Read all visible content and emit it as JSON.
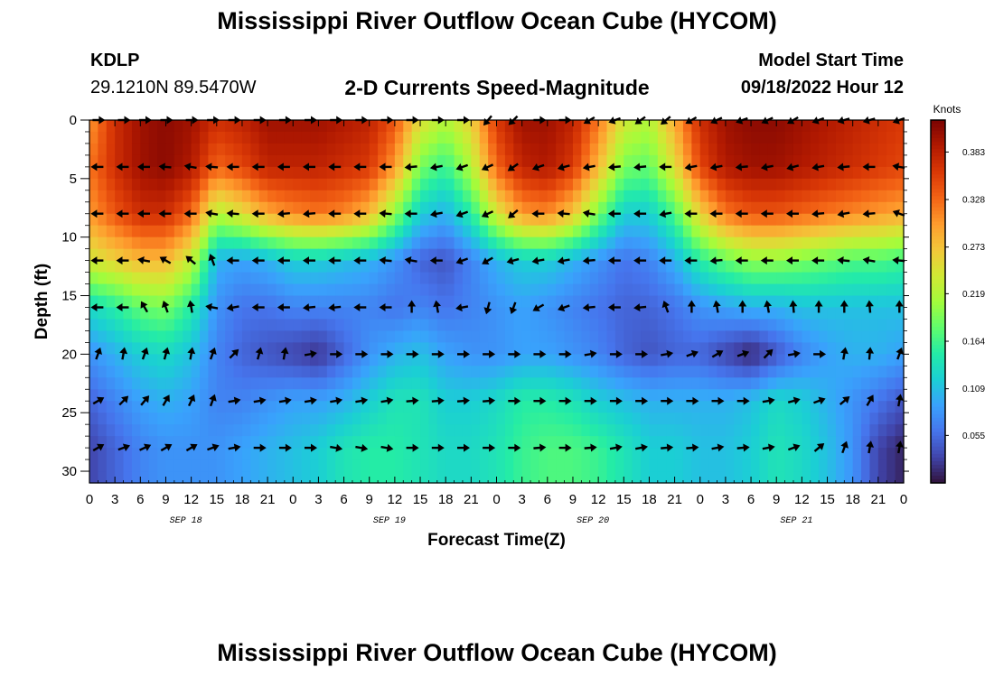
{
  "header": {
    "title": "Mississippi River Outflow Ocean Cube (HYCOM)",
    "station_id": "KDLP",
    "station_coords": "29.1210N  89.5470W",
    "subtitle": "2-D Currents Speed-Magnitude",
    "model_start_label": "Model Start Time",
    "model_start_value": "09/18/2022 Hour 12"
  },
  "footer": {
    "title": "Mississippi River Outflow Ocean Cube (HYCOM)"
  },
  "chart_data": {
    "type": "heatmap",
    "xlabel": "Forecast Time(Z)",
    "ylabel": "Depth (ft)",
    "x_tick_labels": [
      "0",
      "3",
      "6",
      "9",
      "12",
      "15",
      "18",
      "21",
      "0",
      "3",
      "6",
      "9",
      "12",
      "15",
      "18",
      "21",
      "0",
      "3",
      "6",
      "9",
      "12",
      "15",
      "18",
      "21",
      "0",
      "3",
      "6",
      "9",
      "12",
      "15",
      "18",
      "21",
      "0"
    ],
    "date_labels": [
      "SEP 18",
      "SEP 19",
      "SEP 20",
      "SEP 21"
    ],
    "y_ticks": [
      0,
      5,
      10,
      15,
      20,
      25,
      30
    ],
    "ylim": [
      0,
      31
    ],
    "x_range_hours": [
      0,
      96
    ],
    "colorbar": {
      "unit": "Knots",
      "min": 0.0,
      "max": 0.42,
      "ticks": [
        0.055,
        0.109,
        0.164,
        0.219,
        0.273,
        0.328,
        0.383
      ],
      "tick_labels": [
        "0.055",
        "0.109",
        "0.164",
        "0.219",
        "0.273",
        "0.328",
        "0.383"
      ],
      "colors": [
        "#30123b",
        "#4145ab",
        "#4675ed",
        "#39a2fc",
        "#1bcfd4",
        "#24eca6",
        "#61fc6c",
        "#a4fc3b",
        "#d1e834",
        "#f3c63a",
        "#fe9b2d",
        "#f36315",
        "#d93806",
        "#b11901",
        "#7a0402"
      ]
    },
    "depths": [
      0,
      4,
      8,
      12,
      16,
      20,
      24,
      28
    ],
    "times": [
      0,
      3,
      6,
      9,
      12,
      15,
      18,
      21,
      24,
      27,
      30,
      33,
      36,
      39,
      42,
      45,
      48,
      51,
      54,
      57,
      60,
      63,
      66,
      69,
      72,
      75,
      78,
      81,
      84,
      87,
      90,
      93,
      96
    ],
    "speed": [
      [
        0.3,
        0.37,
        0.4,
        0.41,
        0.4,
        0.37,
        0.38,
        0.4,
        0.4,
        0.4,
        0.39,
        0.38,
        0.34,
        0.25,
        0.22,
        0.26,
        0.36,
        0.4,
        0.4,
        0.38,
        0.32,
        0.24,
        0.22,
        0.29,
        0.37,
        0.4,
        0.41,
        0.41,
        0.4,
        0.39,
        0.38,
        0.37,
        0.36
      ],
      [
        0.32,
        0.37,
        0.4,
        0.41,
        0.39,
        0.33,
        0.35,
        0.38,
        0.38,
        0.38,
        0.37,
        0.36,
        0.3,
        0.19,
        0.16,
        0.22,
        0.33,
        0.38,
        0.39,
        0.36,
        0.28,
        0.19,
        0.18,
        0.25,
        0.35,
        0.39,
        0.4,
        0.4,
        0.39,
        0.38,
        0.37,
        0.36,
        0.35
      ],
      [
        0.3,
        0.34,
        0.37,
        0.37,
        0.33,
        0.22,
        0.25,
        0.29,
        0.31,
        0.32,
        0.31,
        0.28,
        0.2,
        0.12,
        0.1,
        0.15,
        0.24,
        0.3,
        0.31,
        0.27,
        0.19,
        0.12,
        0.12,
        0.17,
        0.26,
        0.32,
        0.34,
        0.34,
        0.33,
        0.32,
        0.31,
        0.3,
        0.29
      ],
      [
        0.24,
        0.26,
        0.28,
        0.28,
        0.23,
        0.1,
        0.09,
        0.1,
        0.12,
        0.12,
        0.11,
        0.1,
        0.08,
        0.05,
        0.04,
        0.07,
        0.1,
        0.12,
        0.12,
        0.1,
        0.08,
        0.06,
        0.07,
        0.1,
        0.15,
        0.18,
        0.2,
        0.2,
        0.19,
        0.18,
        0.17,
        0.17,
        0.16
      ],
      [
        0.13,
        0.15,
        0.18,
        0.19,
        0.15,
        0.08,
        0.06,
        0.06,
        0.07,
        0.07,
        0.07,
        0.07,
        0.06,
        0.07,
        0.06,
        0.07,
        0.08,
        0.09,
        0.08,
        0.07,
        0.06,
        0.05,
        0.05,
        0.06,
        0.08,
        0.09,
        0.1,
        0.1,
        0.11,
        0.11,
        0.11,
        0.11,
        0.11
      ],
      [
        0.08,
        0.1,
        0.12,
        0.13,
        0.11,
        0.07,
        0.05,
        0.04,
        0.03,
        0.02,
        0.05,
        0.08,
        0.1,
        0.11,
        0.09,
        0.08,
        0.08,
        0.09,
        0.09,
        0.08,
        0.07,
        0.05,
        0.04,
        0.05,
        0.05,
        0.03,
        0.01,
        0.04,
        0.07,
        0.09,
        0.1,
        0.1,
        0.09
      ],
      [
        0.05,
        0.07,
        0.09,
        0.1,
        0.09,
        0.07,
        0.07,
        0.08,
        0.09,
        0.09,
        0.1,
        0.12,
        0.14,
        0.14,
        0.12,
        0.12,
        0.13,
        0.15,
        0.15,
        0.14,
        0.12,
        0.11,
        0.1,
        0.1,
        0.1,
        0.1,
        0.11,
        0.13,
        0.12,
        0.1,
        0.08,
        0.06,
        0.04
      ],
      [
        0.03,
        0.05,
        0.07,
        0.08,
        0.08,
        0.08,
        0.09,
        0.1,
        0.11,
        0.12,
        0.14,
        0.15,
        0.15,
        0.14,
        0.13,
        0.13,
        0.14,
        0.16,
        0.17,
        0.17,
        0.16,
        0.14,
        0.12,
        0.12,
        0.11,
        0.11,
        0.12,
        0.14,
        0.13,
        0.11,
        0.08,
        0.03,
        0.01
      ]
    ],
    "arrow_depths": [
      0,
      4,
      8,
      12,
      16,
      20,
      24,
      28
    ],
    "arrow_times": [
      1,
      4,
      6.5,
      9,
      12,
      14.5,
      17,
      20,
      23,
      26,
      29,
      32,
      35,
      38,
      41,
      44,
      47,
      50,
      53,
      56,
      59,
      62,
      65,
      68,
      71,
      74,
      77,
      80,
      83,
      86,
      89,
      92,
      95.5
    ],
    "arrow_direction_deg": [
      [
        0,
        0,
        0,
        0,
        0,
        0,
        0,
        0,
        0,
        0,
        0,
        0,
        0,
        0,
        0,
        0,
        230,
        225,
        0,
        0,
        210,
        200,
        215,
        220,
        210,
        205,
        200,
        205,
        210,
        200,
        195,
        195,
        200
      ],
      [
        180,
        180,
        180,
        175,
        170,
        175,
        180,
        180,
        180,
        180,
        180,
        180,
        180,
        185,
        190,
        200,
        205,
        215,
        200,
        195,
        190,
        185,
        185,
        180,
        190,
        190,
        185,
        190,
        195,
        190,
        185,
        180,
        170
      ],
      [
        180,
        180,
        180,
        180,
        180,
        170,
        175,
        180,
        185,
        185,
        180,
        180,
        175,
        180,
        190,
        200,
        205,
        220,
        180,
        175,
        170,
        180,
        180,
        190,
        180,
        180,
        180,
        180,
        180,
        185,
        190,
        185,
        160
      ],
      [
        180,
        180,
        170,
        150,
        140,
        110,
        180,
        180,
        180,
        180,
        180,
        180,
        175,
        170,
        180,
        200,
        210,
        195,
        190,
        190,
        185,
        180,
        180,
        180,
        180,
        185,
        180,
        180,
        180,
        180,
        175,
        170,
        175
      ],
      [
        180,
        180,
        120,
        110,
        100,
        170,
        190,
        180,
        180,
        185,
        185,
        180,
        180,
        90,
        100,
        190,
        255,
        250,
        210,
        200,
        185,
        180,
        185,
        110,
        90,
        100,
        90,
        100,
        95,
        90,
        90,
        95,
        90
      ],
      [
        70,
        80,
        70,
        75,
        80,
        70,
        45,
        75,
        80,
        10,
        0,
        0,
        0,
        0,
        0,
        0,
        0,
        0,
        0,
        0,
        10,
        0,
        0,
        10,
        20,
        30,
        20,
        45,
        10,
        0,
        80,
        85,
        70
      ],
      [
        30,
        45,
        50,
        60,
        65,
        70,
        10,
        10,
        10,
        10,
        10,
        10,
        10,
        5,
        5,
        5,
        5,
        0,
        0,
        0,
        0,
        0,
        0,
        0,
        0,
        0,
        0,
        10,
        15,
        20,
        40,
        60,
        80
      ],
      [
        30,
        20,
        25,
        30,
        30,
        20,
        10,
        0,
        0,
        0,
        -10,
        -10,
        -10,
        0,
        0,
        0,
        0,
        0,
        5,
        0,
        5,
        10,
        10,
        5,
        5,
        10,
        5,
        10,
        20,
        40,
        70,
        80,
        80
      ]
    ]
  }
}
